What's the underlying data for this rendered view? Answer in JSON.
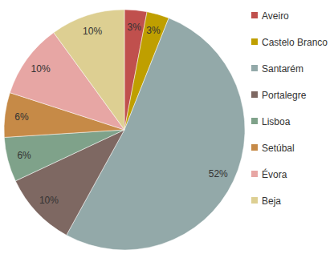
{
  "chart_data": {
    "type": "pie",
    "categories": [
      "Aveiro",
      "Castelo Branco",
      "Santarém",
      "Portalegre",
      "Lisboa",
      "Setúbal",
      "Évora",
      "Beja"
    ],
    "values": [
      3,
      3,
      52,
      10,
      6,
      6,
      10,
      10
    ],
    "value_labels": [
      "3%",
      "3%",
      "52%",
      "10%",
      "6%",
      "6%",
      "10%",
      "10%"
    ],
    "colors": [
      "#c0504d",
      "#bf9f00",
      "#93a9a9",
      "#7e6862",
      "#7fa28a",
      "#c68a47",
      "#e7a6a4",
      "#ddcf92"
    ],
    "data_labels": true,
    "legend": "right"
  }
}
